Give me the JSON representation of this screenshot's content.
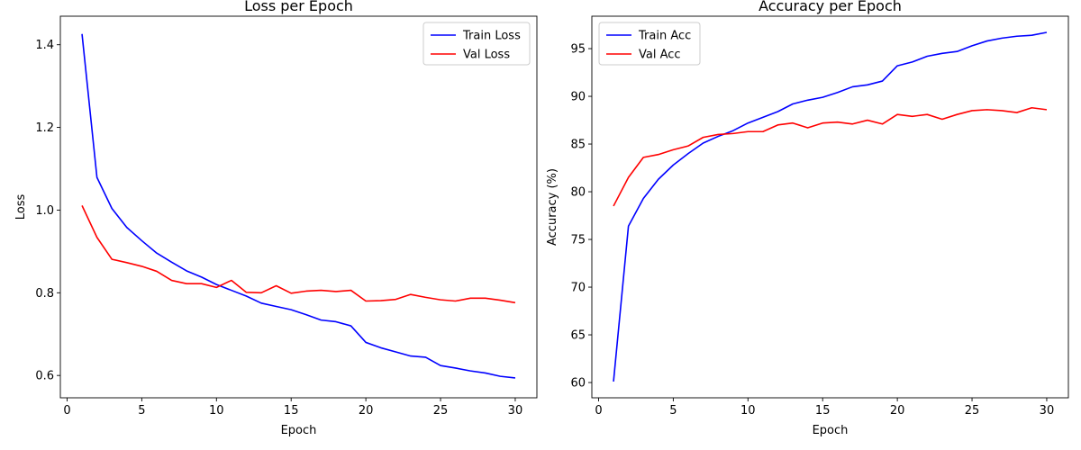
{
  "chart_data": [
    {
      "type": "line",
      "title": "Loss per Epoch",
      "xlabel": "Epoch",
      "ylabel": "Loss",
      "xlim": [
        -0.45,
        31.45
      ],
      "ylim": [
        0.546,
        1.469
      ],
      "xticks": [
        0,
        5,
        10,
        15,
        20,
        25,
        30
      ],
      "yticks": [
        0.6,
        0.8,
        1.0,
        1.2,
        1.4
      ],
      "ytick_labels": [
        "0.6",
        "0.8",
        "1.0",
        "1.2",
        "1.4"
      ],
      "grid": false,
      "legend_position": "top-right",
      "x": [
        1,
        2,
        3,
        4,
        5,
        6,
        7,
        8,
        9,
        10,
        11,
        12,
        13,
        14,
        15,
        16,
        17,
        18,
        19,
        20,
        21,
        22,
        23,
        24,
        25,
        26,
        27,
        28,
        29,
        30
      ],
      "series": [
        {
          "name": "Train Loss",
          "color": "#0000ff",
          "values": [
            1.426,
            1.079,
            1.004,
            0.958,
            0.926,
            0.896,
            0.874,
            0.853,
            0.838,
            0.82,
            0.806,
            0.792,
            0.775,
            0.767,
            0.759,
            0.747,
            0.734,
            0.73,
            0.72,
            0.68,
            0.667,
            0.657,
            0.647,
            0.644,
            0.624,
            0.618,
            0.611,
            0.606,
            0.598,
            0.594
          ]
        },
        {
          "name": "Val Loss",
          "color": "#ff0000",
          "values": [
            1.011,
            0.934,
            0.881,
            0.873,
            0.864,
            0.852,
            0.83,
            0.822,
            0.822,
            0.813,
            0.83,
            0.801,
            0.8,
            0.817,
            0.799,
            0.804,
            0.806,
            0.803,
            0.806,
            0.78,
            0.781,
            0.784,
            0.796,
            0.789,
            0.783,
            0.78,
            0.787,
            0.787,
            0.782,
            0.776
          ]
        }
      ]
    },
    {
      "type": "line",
      "title": "Accuracy per Epoch",
      "xlabel": "Epoch",
      "ylabel": "Accuracy (%)",
      "xlim": [
        -0.45,
        31.45
      ],
      "ylim": [
        58.4,
        98.4
      ],
      "xticks": [
        0,
        5,
        10,
        15,
        20,
        25,
        30
      ],
      "yticks": [
        60,
        65,
        70,
        75,
        80,
        85,
        90,
        95
      ],
      "ytick_labels": [
        "60",
        "65",
        "70",
        "75",
        "80",
        "85",
        "90",
        "95"
      ],
      "grid": false,
      "legend_position": "top-left",
      "x": [
        1,
        2,
        3,
        4,
        5,
        6,
        7,
        8,
        9,
        10,
        11,
        12,
        13,
        14,
        15,
        16,
        17,
        18,
        19,
        20,
        21,
        22,
        23,
        24,
        25,
        26,
        27,
        28,
        29,
        30
      ],
      "series": [
        {
          "name": "Train Acc",
          "color": "#0000ff",
          "values": [
            60.1,
            76.4,
            79.3,
            81.3,
            82.8,
            84.0,
            85.1,
            85.8,
            86.4,
            87.2,
            87.8,
            88.4,
            89.2,
            89.6,
            89.9,
            90.4,
            91.0,
            91.2,
            91.6,
            93.2,
            93.6,
            94.2,
            94.5,
            94.7,
            95.3,
            95.8,
            96.1,
            96.3,
            96.4,
            96.7
          ]
        },
        {
          "name": "Val Acc",
          "color": "#ff0000",
          "values": [
            78.5,
            81.5,
            83.6,
            83.9,
            84.4,
            84.8,
            85.7,
            86.0,
            86.1,
            86.3,
            86.3,
            87.0,
            87.2,
            86.7,
            87.2,
            87.3,
            87.1,
            87.5,
            87.1,
            88.1,
            87.9,
            88.1,
            87.6,
            88.1,
            88.5,
            88.6,
            88.5,
            88.3,
            88.8,
            88.6
          ]
        }
      ]
    }
  ]
}
